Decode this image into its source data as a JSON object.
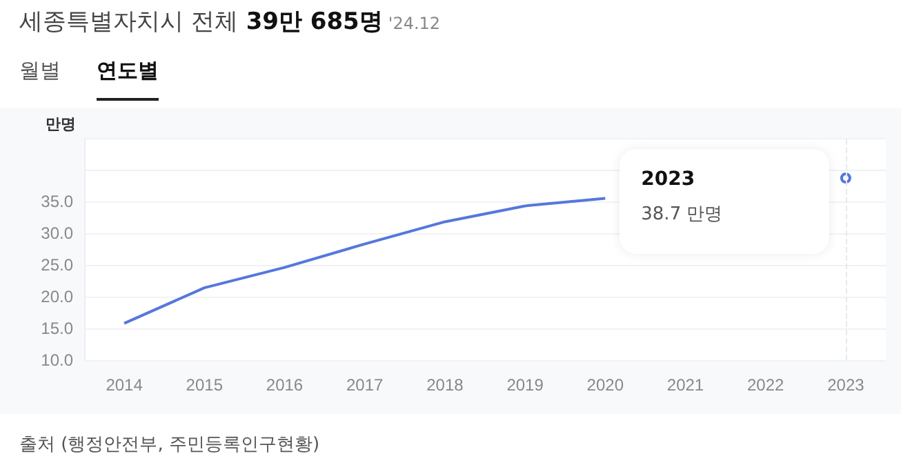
{
  "chart_data": {
    "type": "line",
    "title": "세종특별자치시 전체 39만 685명",
    "subtitle": "'24.12",
    "ylabel": "만명",
    "categories": [
      "2014",
      "2015",
      "2016",
      "2017",
      "2018",
      "2019",
      "2020",
      "2021",
      "2022",
      "2023"
    ],
    "series": [
      {
        "color": "#5577dd",
        "values": [
          15.8,
          21.4,
          24.6,
          28.3,
          31.8,
          34.3,
          35.5,
          null,
          null,
          38.7
        ]
      }
    ],
    "ylim": [
      10,
      45
    ],
    "yticks": [
      {
        "value": 10,
        "label": "10.0"
      },
      {
        "value": 15,
        "label": "15.0"
      },
      {
        "value": 20,
        "label": "20.0"
      },
      {
        "value": 25,
        "label": "25.0"
      },
      {
        "value": 30,
        "label": "30.0"
      },
      {
        "value": 35,
        "label": "35.0"
      },
      {
        "value": 40,
        "label": null
      }
    ],
    "grid": "y",
    "marker": "none",
    "ref_lines": [
      {
        "axis": "x",
        "value": "2023",
        "color": "#e6e8ec",
        "line_style": "dashed"
      }
    ],
    "annotations": [
      "월별",
      "연도별",
      "2023",
      "38.7 만명",
      "출처 (행정안전부, 주민등록인구현황)"
    ]
  }
}
